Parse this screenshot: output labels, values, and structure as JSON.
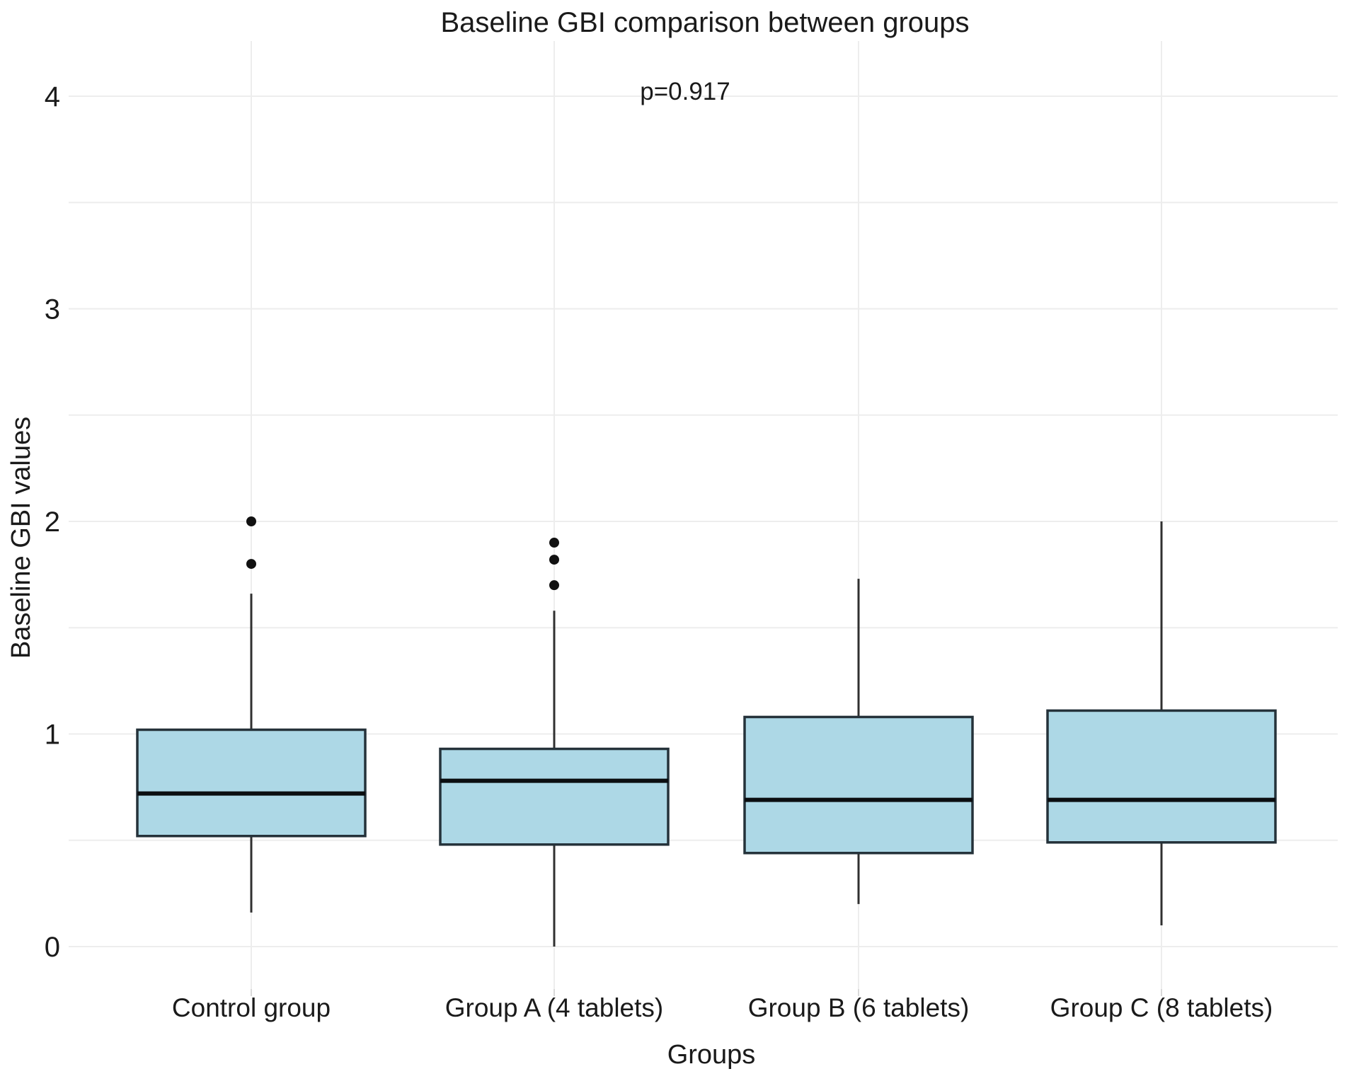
{
  "chart_data": {
    "type": "boxplot",
    "title": "Baseline GBI comparison between groups",
    "annotation": "p=0.917",
    "xlabel": "Groups",
    "ylabel": "Baseline GBI values",
    "ylim": [
      0,
      4
    ],
    "y_ticks": [
      "0",
      "1",
      "2",
      "3",
      "4"
    ],
    "y_tick_values": [
      0,
      1,
      2,
      3,
      4
    ],
    "y_minor_gridlines": [
      0.5,
      1.5,
      2.5,
      3.5
    ],
    "grid": "on",
    "legend": "none",
    "categories": [
      "Control group",
      "Group A (4 tablets)",
      "Group B (6 tablets)",
      "Group C (8 tablets)"
    ],
    "series": [
      {
        "name": "Control group",
        "whisker_low": 0.16,
        "q1": 0.52,
        "median": 0.72,
        "q3": 1.02,
        "whisker_high": 1.66,
        "outliers": [
          1.8,
          2.0
        ]
      },
      {
        "name": "Group A (4 tablets)",
        "whisker_low": 0.0,
        "q1": 0.48,
        "median": 0.78,
        "q3": 0.93,
        "whisker_high": 1.58,
        "outliers": [
          1.7,
          1.82,
          1.9
        ]
      },
      {
        "name": "Group B (6 tablets)",
        "whisker_low": 0.2,
        "q1": 0.44,
        "median": 0.69,
        "q3": 1.08,
        "whisker_high": 1.73,
        "outliers": []
      },
      {
        "name": "Group C (8 tablets)",
        "whisker_low": 0.1,
        "q1": 0.49,
        "median": 0.69,
        "q3": 1.11,
        "whisker_high": 2.0,
        "outliers": []
      }
    ],
    "colors": {
      "box_fill": "#ADD8E6",
      "box_stroke": "#25323A",
      "median_line": "#0B0E11",
      "whisker": "#303030",
      "outlier": "#111111",
      "gridline": "#EDEDED",
      "tick_stub": "#D9D9D9",
      "text": "#1A1A1A",
      "background": "#FFFFFF"
    }
  }
}
